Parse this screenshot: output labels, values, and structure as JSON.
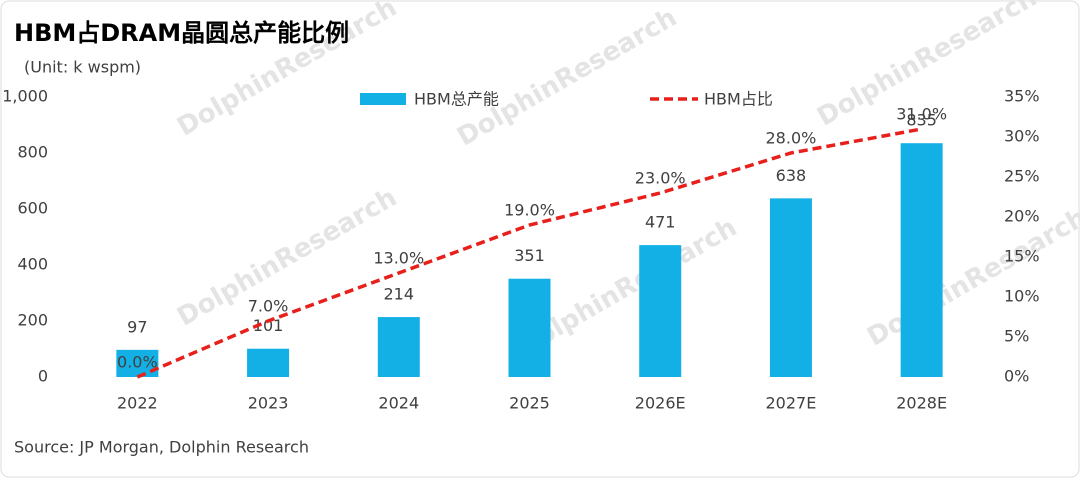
{
  "chart_data": {
    "type": "bar-line",
    "title": "HBM占DRAM晶圆总产能比例",
    "subtitle": "(Unit: k wspm)",
    "source": "Source: JP Morgan, Dolphin Research",
    "watermark": "DolphinResearch",
    "categories": [
      "2022",
      "2023",
      "2024",
      "2025",
      "2026E",
      "2027E",
      "2028E"
    ],
    "series": [
      {
        "name": "HBM总产能",
        "type": "bar",
        "color": "#13b0e6",
        "values": [
          97,
          101,
          214,
          351,
          471,
          638,
          835
        ]
      },
      {
        "name": "HBM占比",
        "type": "line",
        "axis": "y2",
        "color": "#e8201c",
        "values": [
          0,
          7,
          13,
          19,
          23,
          28,
          31
        ],
        "value_labels": [
          "0.0%",
          "7.0%",
          "13.0%",
          "19.0%",
          "23.0%",
          "28.0%",
          "31.0%"
        ]
      }
    ],
    "ylim": [
      0,
      1000
    ],
    "yticks": [
      0,
      200,
      400,
      600,
      800,
      {
        "value": 1000,
        "label": "1,000"
      }
    ],
    "y2lim": [
      0,
      35
    ],
    "y2ticks": [
      {
        "value": 0,
        "label": "0%"
      },
      {
        "value": 5,
        "label": "5%"
      },
      {
        "value": 10,
        "label": "10%"
      },
      {
        "value": 15,
        "label": "15%"
      },
      {
        "value": 20,
        "label": "20%"
      },
      {
        "value": 25,
        "label": "25%"
      },
      {
        "value": 30,
        "label": "30%"
      },
      {
        "value": 35,
        "label": "35%"
      }
    ],
    "grid": false,
    "legend": "top"
  }
}
